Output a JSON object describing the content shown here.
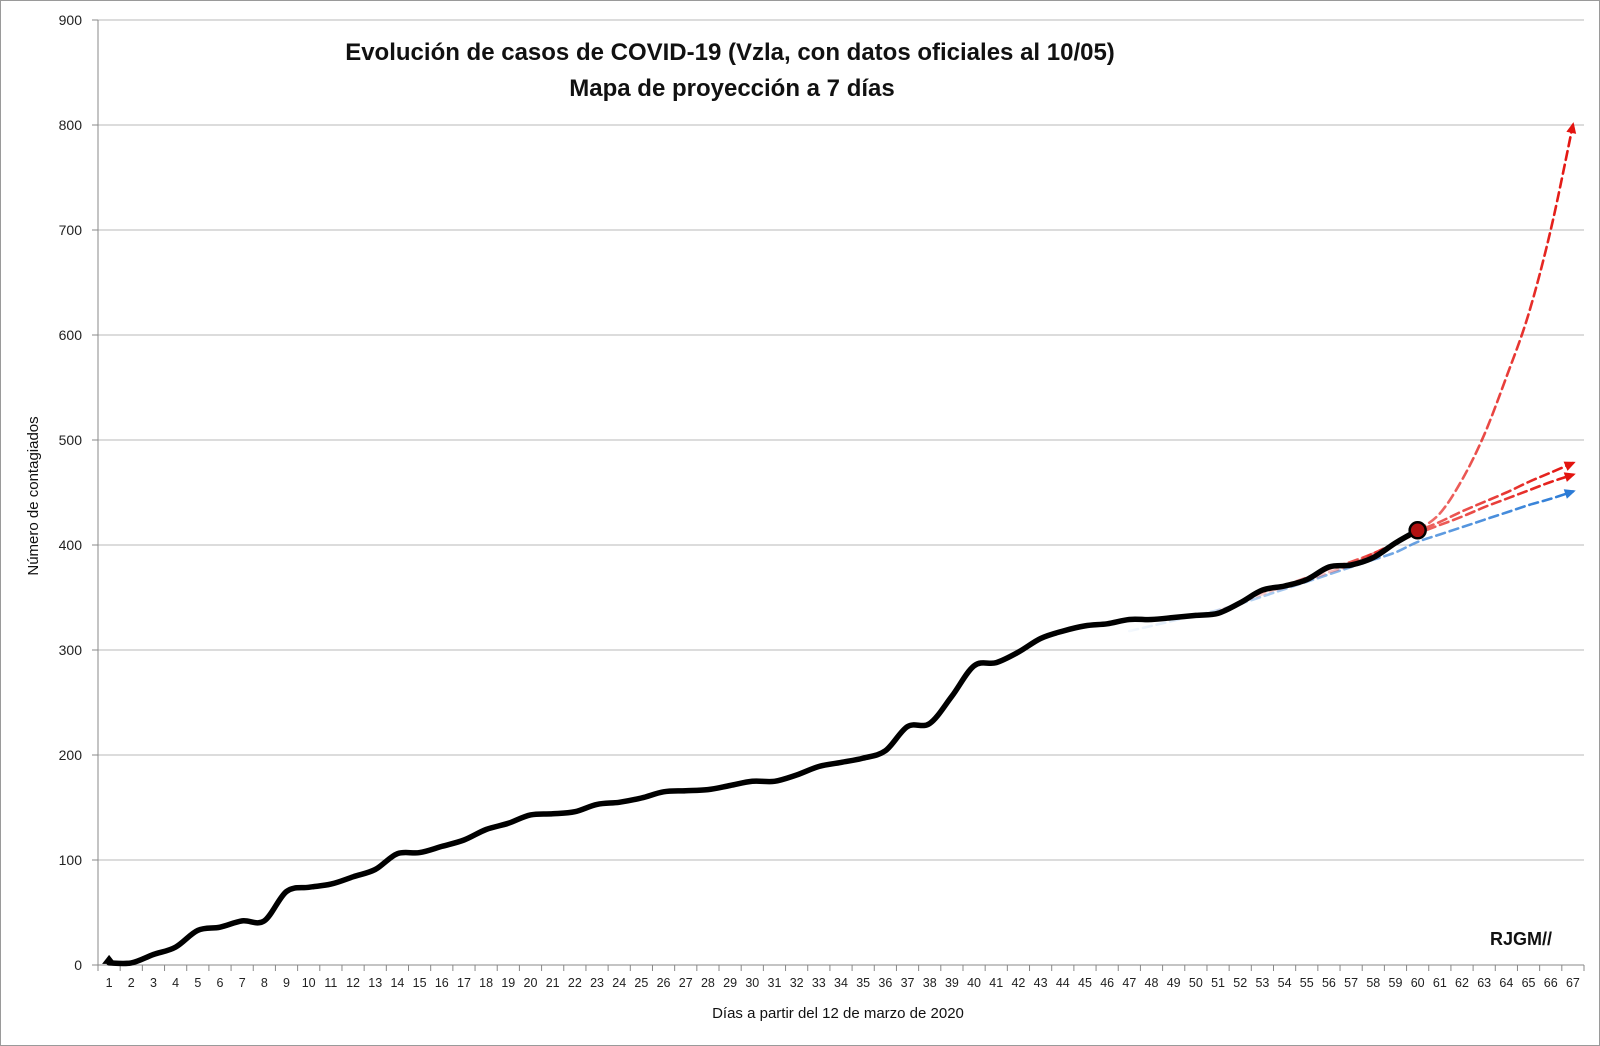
{
  "chart_data": {
    "type": "line",
    "title": "Evolución de casos de COVID-19 (Vzla, con datos oficiales al 10/05)",
    "subtitle": "Mapa de proyección a 7 días",
    "xlabel": "Días a partir del 12 de marzo de 2020",
    "ylabel": "Número de contagiados",
    "signature": "RJGM//",
    "ylim": [
      0,
      900
    ],
    "y_ticks": [
      0,
      100,
      200,
      300,
      400,
      500,
      600,
      700,
      800,
      900
    ],
    "x_ticks": [
      1,
      2,
      3,
      4,
      5,
      6,
      7,
      8,
      9,
      10,
      11,
      12,
      13,
      14,
      15,
      16,
      17,
      18,
      19,
      20,
      21,
      22,
      23,
      24,
      25,
      26,
      27,
      28,
      29,
      30,
      31,
      32,
      33,
      34,
      35,
      36,
      37,
      38,
      39,
      40,
      41,
      42,
      43,
      44,
      45,
      46,
      47,
      48,
      49,
      50,
      51,
      52,
      53,
      54,
      55,
      56,
      57,
      58,
      59,
      60,
      61,
      62,
      63,
      64,
      65,
      66,
      67
    ],
    "grid": "horizontal",
    "series": [
      {
        "role": "observed",
        "color": "#000000",
        "x": [
          1,
          2,
          3,
          4,
          5,
          6,
          7,
          8,
          9,
          10,
          11,
          12,
          13,
          14,
          15,
          16,
          17,
          18,
          19,
          20,
          21,
          22,
          23,
          24,
          25,
          26,
          27,
          28,
          29,
          30,
          31,
          32,
          33,
          34,
          35,
          36,
          37,
          38,
          39,
          40,
          41,
          42,
          43,
          44,
          45,
          46,
          47,
          48,
          49,
          50,
          51,
          52,
          53,
          54,
          55,
          56,
          57,
          58,
          59,
          60
        ],
        "values": [
          2,
          2,
          10,
          17,
          33,
          36,
          42,
          42,
          70,
          74,
          77,
          84,
          91,
          106,
          107,
          113,
          119,
          129,
          135,
          143,
          144,
          146,
          153,
          155,
          159,
          165,
          166,
          167,
          171,
          175,
          175,
          181,
          189,
          193,
          197,
          204,
          227,
          230,
          256,
          285,
          288,
          298,
          311,
          318,
          323,
          325,
          329,
          329,
          331,
          333,
          335,
          345,
          357,
          361,
          367,
          379,
          381,
          388,
          402,
          414
        ]
      },
      {
        "role": "projection",
        "color": "#2b7bd6",
        "x": [
          47,
          48,
          49,
          50,
          51,
          52,
          53,
          54,
          55,
          56,
          57,
          58,
          59,
          60,
          61,
          62,
          63,
          64,
          65,
          66,
          67
        ],
        "values": [
          318,
          323,
          328,
          333,
          338,
          344,
          351,
          358,
          365,
          372,
          379,
          386,
          393,
          403,
          410,
          417,
          424,
          431,
          438,
          444,
          451
        ]
      },
      {
        "role": "projection",
        "color": "#e3140f",
        "x": [
          51,
          52,
          53,
          54,
          55,
          56,
          57,
          58,
          59,
          60,
          61,
          62,
          63,
          64,
          65,
          66,
          67
        ],
        "values": [
          338,
          345,
          355,
          362,
          369,
          377,
          384,
          392,
          402,
          411,
          419,
          427,
          436,
          444,
          452,
          460,
          467
        ]
      },
      {
        "role": "projection",
        "color": "#e3140f",
        "x": [
          51,
          52,
          53,
          54,
          55,
          56,
          57,
          58,
          59,
          60,
          61,
          62,
          63,
          64,
          65,
          66,
          67
        ],
        "values": [
          336,
          345,
          353,
          361,
          369,
          378,
          384,
          392,
          402,
          413,
          422,
          432,
          441,
          450,
          460,
          469,
          478
        ]
      },
      {
        "role": "projection",
        "color": "#e3140f",
        "x": [
          53,
          54,
          55,
          56,
          57,
          58,
          59,
          60,
          61,
          62,
          63,
          64,
          65,
          66,
          67
        ],
        "values": [
          355,
          359,
          366,
          374,
          381,
          392,
          401,
          414,
          430,
          462,
          505,
          560,
          620,
          700,
          800
        ]
      }
    ],
    "last_point": {
      "x": 60,
      "y": 414,
      "color": "#b01010"
    }
  }
}
